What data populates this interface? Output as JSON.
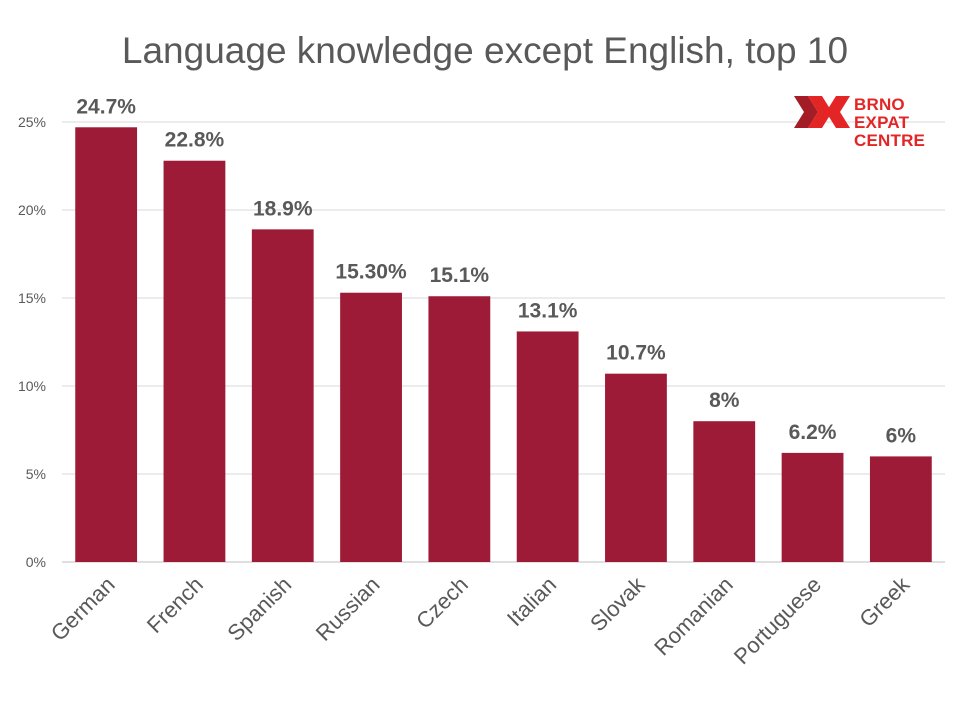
{
  "chart_data": {
    "type": "bar",
    "title": "Language knowledge except English, top 10",
    "categories": [
      "German",
      "French",
      "Spanish",
      "Russian",
      "Czech",
      "Italian",
      "Slovak",
      "Romanian",
      "Portuguese",
      "Greek"
    ],
    "values": [
      24.7,
      22.8,
      18.9,
      15.3,
      15.1,
      13.1,
      10.7,
      8,
      6.2,
      6
    ],
    "data_labels": [
      "24.7%",
      "22.8%",
      "18.9%",
      "15.30%",
      "15.1%",
      "13.1%",
      "10.7%",
      "8%",
      "6.2%",
      "6%"
    ],
    "yticks": [
      0,
      5,
      10,
      15,
      20,
      25
    ],
    "ytick_labels": [
      "0%",
      "5%",
      "10%",
      "15%",
      "20%",
      "25%"
    ],
    "ylim": [
      0,
      25
    ],
    "xlabel": "",
    "ylabel": "",
    "grid": true,
    "bar_color": "#9e1b38",
    "grid_color": "#d9d9d9"
  },
  "logo": {
    "lines": [
      "BRNO",
      "EXPAT",
      "CENTRE"
    ],
    "color": "#e32526",
    "dark_color": "#a31c26"
  }
}
